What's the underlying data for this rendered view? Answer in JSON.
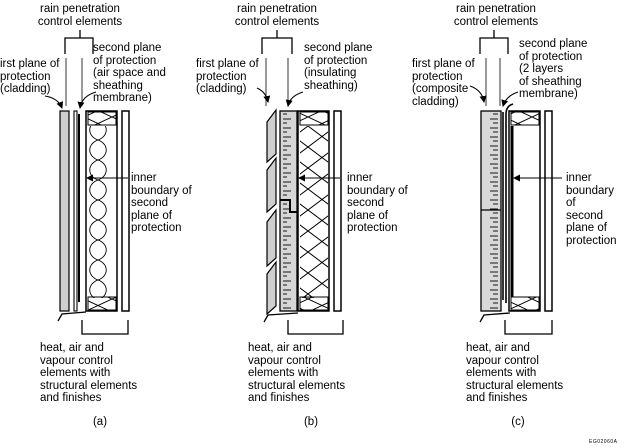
{
  "panels": [
    {
      "top_label": "rain penetration\ncontrol elements",
      "first_plane": "irst plane of\nprotection\n(cladding)",
      "second_plane": "second plane\nof protection\n(air space and\nsheathing\nmembrane)",
      "inner_boundary": "inner\nboundary of\nsecond\nplane of\nprotection",
      "bottom_label": "heat, air and\nvapour control\nelements with\nstructural elements\nand finishes",
      "caption": "(a)"
    },
    {
      "top_label": "rain penetration\ncontrol elements",
      "first_plane": "first plane of\nprotection\n(cladding)",
      "second_plane": "second plane\nof protection\n(insulating\nsheathing)",
      "inner_boundary": "inner\nboundary of\nsecond\nplane of\nprotection",
      "bottom_label": "heat, air and\nvapour control\nelements with\nstructural elements\nand finishes",
      "caption": "(b)"
    },
    {
      "top_label": "rain penetration\ncontrol elements",
      "first_plane": "first plane of\nprotection\n(composite\ncladding)",
      "second_plane": "second plane\nof protection\n(2 layers\nof sheathing\nmembrane)",
      "inner_boundary": "inner\nboundary of\nsecond\nplane of\nprotection",
      "bottom_label": "heat, air and\nvapour control\nelements with\nstructural elements\nand finishes",
      "caption": "(c)"
    }
  ],
  "figure_code": "EG02060A"
}
